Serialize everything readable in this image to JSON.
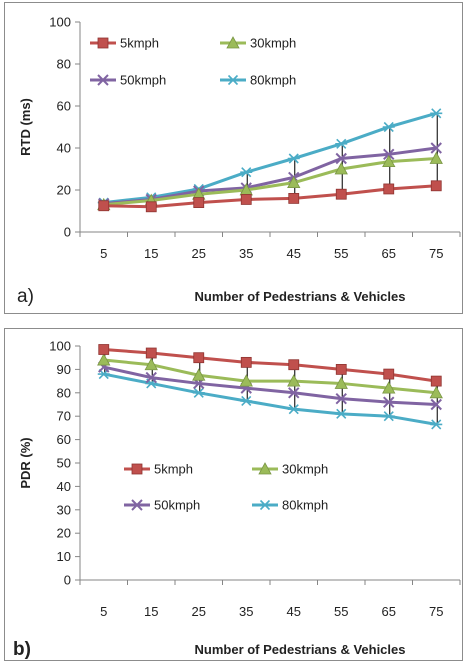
{
  "chart_data": [
    {
      "panel_label": "a)",
      "type": "line",
      "x": [
        "5",
        "15",
        "25",
        "35",
        "45",
        "55",
        "65",
        "75"
      ],
      "xlabel": "Number of Pedestrians & Vehicles",
      "ylabel": "RTD (ms)",
      "ylim": [
        0,
        100
      ],
      "yticks": [
        0,
        20,
        40,
        60,
        80,
        100
      ],
      "grid": false,
      "legend_position": "top-left",
      "error_bars": true,
      "series": [
        {
          "name": "5kmph",
          "color": "#c0504d",
          "marker": "square",
          "values": [
            12.5,
            12,
            14,
            15.5,
            16,
            18,
            20.5,
            22
          ]
        },
        {
          "name": "30kmph",
          "color": "#9bbb59",
          "marker": "triangle",
          "values": [
            13,
            15,
            18,
            20,
            23.5,
            30,
            33.5,
            35
          ]
        },
        {
          "name": "50kmph",
          "color": "#8064a2",
          "marker": "x",
          "values": [
            13.5,
            15.5,
            19.5,
            21,
            26,
            35,
            37,
            40
          ]
        },
        {
          "name": "80kmph",
          "color": "#4bacc6",
          "marker": "star",
          "values": [
            14,
            16.5,
            20.5,
            28.5,
            35,
            42,
            50,
            56.5
          ]
        }
      ]
    },
    {
      "panel_label": "b)",
      "type": "line",
      "x": [
        "5",
        "15",
        "25",
        "35",
        "45",
        "55",
        "65",
        "75"
      ],
      "xlabel": "Number of Pedestrians & Vehicles",
      "ylabel": "PDR (%)",
      "ylim": [
        0,
        100
      ],
      "yticks": [
        0,
        10,
        20,
        30,
        40,
        50,
        60,
        70,
        80,
        90,
        100
      ],
      "grid": false,
      "legend_position": "center-left",
      "error_bars": true,
      "series": [
        {
          "name": "5kmph",
          "color": "#c0504d",
          "marker": "square",
          "values": [
            98.5,
            97,
            95,
            93,
            92,
            90,
            88,
            85
          ]
        },
        {
          "name": "30kmph",
          "color": "#9bbb59",
          "marker": "triangle",
          "values": [
            94,
            92,
            87.5,
            85,
            85,
            84,
            82,
            80
          ]
        },
        {
          "name": "50kmph",
          "color": "#8064a2",
          "marker": "x",
          "values": [
            91,
            86.5,
            84,
            82,
            80,
            77.5,
            76,
            75
          ]
        },
        {
          "name": "80kmph",
          "color": "#4bacc6",
          "marker": "star",
          "values": [
            88,
            84,
            80,
            76.5,
            73,
            71,
            70,
            66.5
          ]
        }
      ]
    }
  ]
}
